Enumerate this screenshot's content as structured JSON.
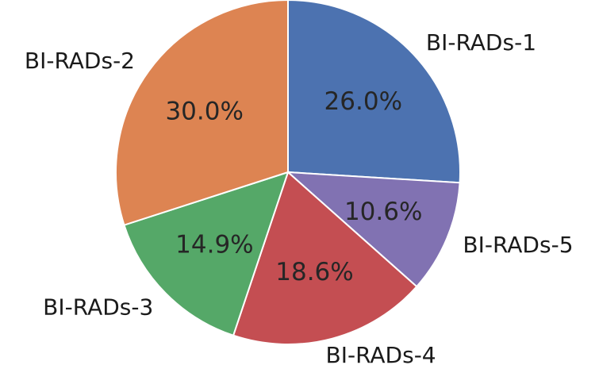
{
  "chart_data": {
    "type": "pie",
    "title": "",
    "start_angle_deg": 90,
    "direction": "clockwise",
    "slices": [
      {
        "label": "BI-RADs-1",
        "value": 26.0,
        "pct_label": "26.0%",
        "color": "#4c72b0"
      },
      {
        "label": "BI-RADs-5",
        "value": 10.6,
        "pct_label": "10.6%",
        "color": "#8172b2"
      },
      {
        "label": "BI-RADs-4",
        "value": 18.6,
        "pct_label": "18.6%",
        "color": "#c44e52"
      },
      {
        "label": "BI-RADs-3",
        "value": 14.9,
        "pct_label": "14.9%",
        "color": "#55a868"
      },
      {
        "label": "BI-RADs-2",
        "value": 30.0,
        "pct_label": "30.0%",
        "color": "#dd8452"
      }
    ]
  }
}
